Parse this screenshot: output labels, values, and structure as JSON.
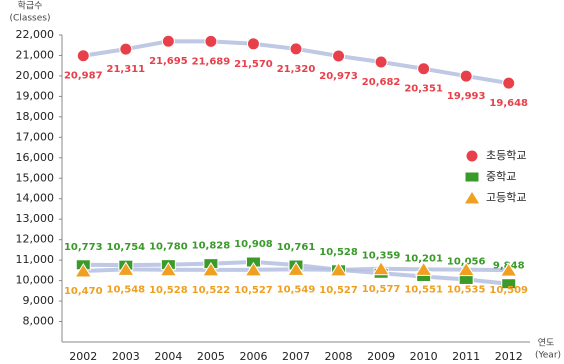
{
  "chart_data": {
    "type": "line",
    "y_label": [
      "학급수",
      "(Classes)"
    ],
    "x_label": [
      "연도",
      "(Year)"
    ],
    "categories": [
      "2002",
      "2003",
      "2004",
      "2005",
      "2006",
      "2007",
      "2008",
      "2009",
      "2010",
      "2011",
      "2012"
    ],
    "series": [
      {
        "name": "초등학교",
        "color": "#e8404a",
        "marker": "circle",
        "values": [
          20987,
          21311,
          21695,
          21689,
          21570,
          21320,
          20973,
          20682,
          20351,
          19993,
          19648
        ],
        "value_labels": [
          "20,987",
          "21,311",
          "21,695",
          "21,689",
          "21,570",
          "21,320",
          "20,973",
          "20,682",
          "20,351",
          "19,993",
          "19,648"
        ]
      },
      {
        "name": "중학교",
        "color": "#3a9a2a",
        "marker": "square",
        "values": [
          10773,
          10754,
          10780,
          10828,
          10908,
          10761,
          10528,
          10359,
          10201,
          10056,
          9848
        ],
        "value_labels": [
          "10,773",
          "10,754",
          "10,780",
          "10,828",
          "10,908",
          "10,761",
          "10,528",
          "10,359",
          "10,201",
          "10,056",
          "9,848"
        ]
      },
      {
        "name": "고등학교",
        "color": "#f0a020",
        "marker": "triangle",
        "values": [
          10470,
          10548,
          10528,
          10522,
          10527,
          10549,
          10527,
          10577,
          10551,
          10535,
          10509
        ],
        "value_labels": [
          "10,470",
          "10,548",
          "10,528",
          "10,522",
          "10,527",
          "10,549",
          "10,527",
          "10,577",
          "10,551",
          "10,535",
          "10,509"
        ]
      }
    ],
    "ylim": [
      7000,
      22000
    ],
    "yticks": [
      {
        "value": 8000,
        "label": "8,000"
      },
      {
        "value": 9000,
        "label": "9,000"
      },
      {
        "value": 10000,
        "label": "10,000"
      },
      {
        "value": 11000,
        "label": "11,000"
      },
      {
        "value": 12000,
        "label": "12,000"
      },
      {
        "value": 13000,
        "label": "13,000"
      },
      {
        "value": 14000,
        "label": "14,000"
      },
      {
        "value": 15000,
        "label": "15,000"
      },
      {
        "value": 16000,
        "label": "16,000"
      },
      {
        "value": 17000,
        "label": "17,000"
      },
      {
        "value": 18000,
        "label": "18,000"
      },
      {
        "value": 19000,
        "label": "19,000"
      },
      {
        "value": 20000,
        "label": "20,000"
      },
      {
        "value": 21000,
        "label": "21,000"
      },
      {
        "value": 22000,
        "label": "22,000"
      }
    ],
    "grid": false,
    "legend": "right"
  }
}
